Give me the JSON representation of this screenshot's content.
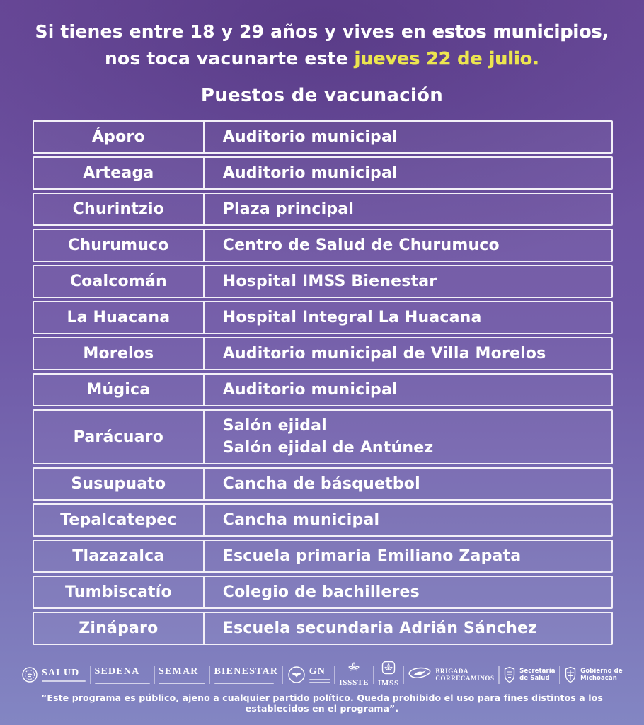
{
  "colors": {
    "bg_top": "#6c4c9c",
    "bg_bottom": "#8386c3",
    "highlight_yellow": "#ece54f"
  },
  "header": {
    "line1_normal": "Si tienes entre 18 y 29 años y vives en ",
    "line1_bold": "estos municipios,",
    "line2_normal": "nos toca vacunarte este ",
    "line2_highlight": "jueves 22 de julio.",
    "subtitle": "Puestos de vacunación"
  },
  "table": {
    "rows": [
      {
        "municipio": "Áporo",
        "lugares": [
          "Auditorio municipal"
        ]
      },
      {
        "municipio": "Arteaga",
        "lugares": [
          "Auditorio municipal"
        ]
      },
      {
        "municipio": "Churintzio",
        "lugares": [
          "Plaza principal"
        ]
      },
      {
        "municipio": "Churumuco",
        "lugares": [
          "Centro de Salud de Churumuco"
        ]
      },
      {
        "municipio": "Coalcomán",
        "lugares": [
          "Hospital IMSS Bienestar"
        ]
      },
      {
        "municipio": "La Huacana",
        "lugares": [
          "Hospital Integral La Huacana"
        ]
      },
      {
        "municipio": "Morelos",
        "lugares": [
          "Auditorio municipal de Villa Morelos"
        ]
      },
      {
        "municipio": "Múgica",
        "lugares": [
          "Auditorio municipal"
        ]
      },
      {
        "municipio": "Parácuaro",
        "lugares": [
          "Salón ejidal",
          "Salón ejidal de Antúnez"
        ]
      },
      {
        "municipio": "Susupuato",
        "lugares": [
          "Cancha de básquetbol"
        ]
      },
      {
        "municipio": "Tepalcatepec",
        "lugares": [
          "Cancha municipal"
        ]
      },
      {
        "municipio": "Tlazazalca",
        "lugares": [
          "Escuela primaria Emiliano Zapata"
        ]
      },
      {
        "municipio": "Tumbiscatío",
        "lugares": [
          "Colegio de bachilleres"
        ]
      },
      {
        "municipio": "Zináparo",
        "lugares": [
          "Escuela secundaria Adrián Sánchez"
        ]
      }
    ]
  },
  "footer": {
    "logos": [
      {
        "label": "SALUD"
      },
      {
        "label": "SEDENA"
      },
      {
        "label": "SEMAR"
      },
      {
        "label": "BIENESTAR"
      },
      {
        "label": "GN"
      },
      {
        "label": "ISSSTE"
      },
      {
        "label": "IMSS"
      },
      {
        "label_line1": "BRIGADA",
        "label_line2": "CORRECAMINOS"
      },
      {
        "label_line1": "Secretaría",
        "label_line2": "de Salud"
      },
      {
        "label_line1": "Gobierno de",
        "label_line2": "Michoacán"
      }
    ],
    "disclaimer": "“Este programa es público, ajeno a cualquier partido político. Queda prohibido el uso para fines distintos a los establecidos en el programa”."
  }
}
